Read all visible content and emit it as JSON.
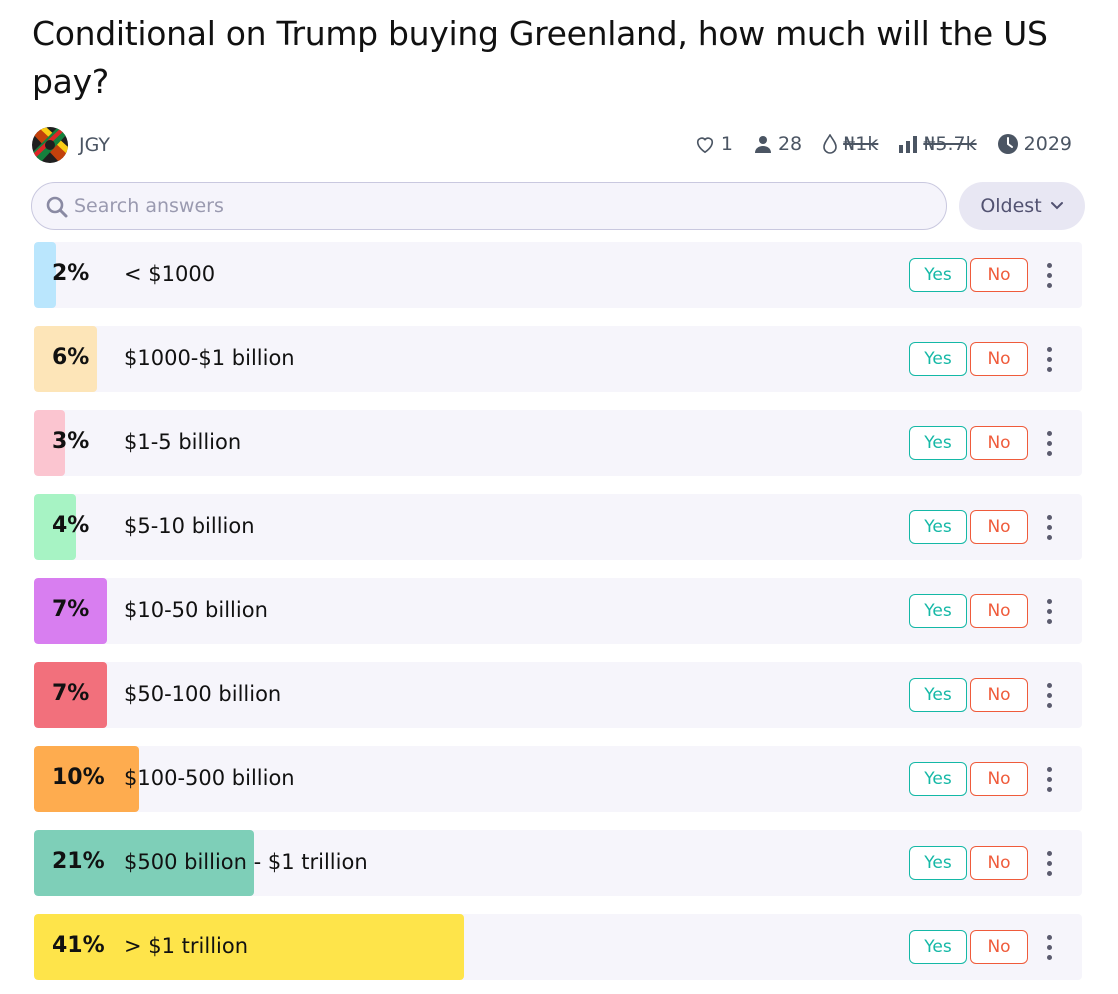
{
  "question": {
    "title": "Conditional on Trump buying Greenland, how much will the US pay?"
  },
  "author": {
    "name": "JGY",
    "avatar": "avatar-image"
  },
  "stats": {
    "likes": "1",
    "traders": "28",
    "liquidity": "₦1k",
    "volume": "₦5.7k",
    "close_year": "2029"
  },
  "search": {
    "placeholder": "Search answers"
  },
  "sort": {
    "label": "Oldest"
  },
  "colors": {
    "yes": "#14b8a6",
    "no": "#ef5b3b",
    "row_bg": "#f6f5fb"
  },
  "buttons": {
    "yes": "Yes",
    "no": "No"
  },
  "answers": [
    {
      "pct": "2%",
      "value": 2,
      "label": "< $1000",
      "color": "#bae6fd"
    },
    {
      "pct": "6%",
      "value": 6,
      "label": "$1000-$1 billion",
      "color": "#fde5b8"
    },
    {
      "pct": "3%",
      "value": 3,
      "label": "$1-5 billion",
      "color": "#fbc5d0"
    },
    {
      "pct": "4%",
      "value": 4,
      "label": "$5-10 billion",
      "color": "#a7f3c4"
    },
    {
      "pct": "7%",
      "value": 7,
      "label": "$10-50 billion",
      "color": "#d87ef0"
    },
    {
      "pct": "7%",
      "value": 7,
      "label": "$50-100 billion",
      "color": "#f2707c"
    },
    {
      "pct": "10%",
      "value": 10,
      "label": "$100-500 billion",
      "color": "#feac4f"
    },
    {
      "pct": "21%",
      "value": 21,
      "label": "$500 billion - $1 trillion",
      "color": "#7ecfb8"
    },
    {
      "pct": "41%",
      "value": 41,
      "label": "> $1 trillion",
      "color": "#fee44a"
    }
  ]
}
